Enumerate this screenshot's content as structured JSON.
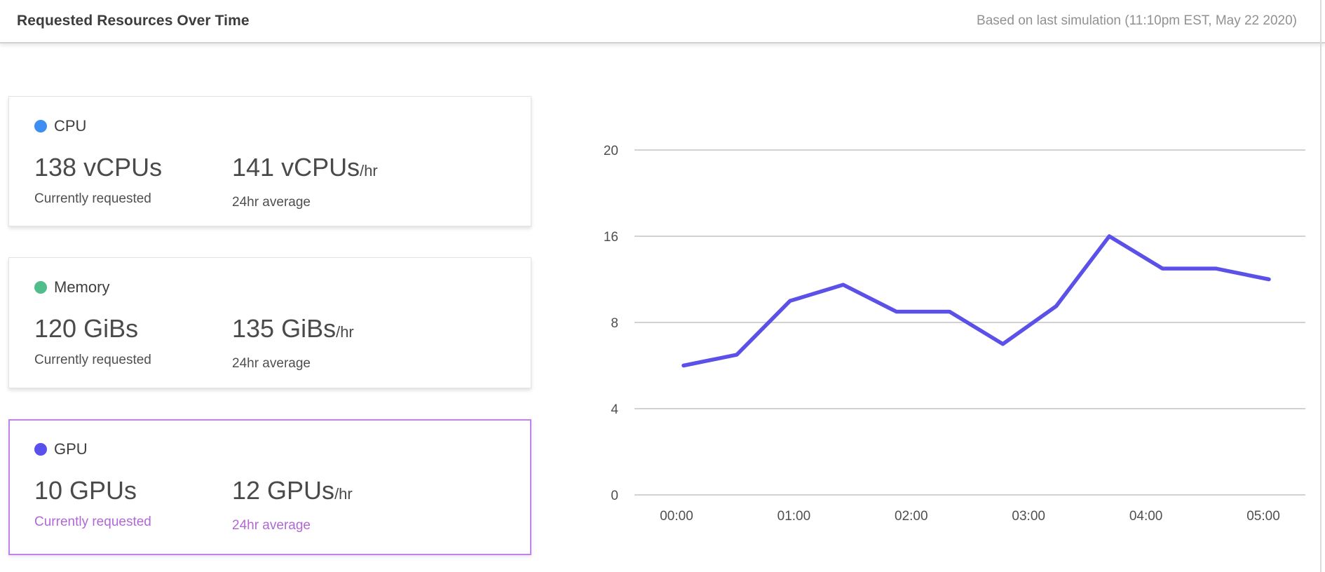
{
  "header": {
    "title": "Requested Resources Over Time",
    "subtitle": "Based on last simulation (11:10pm EST, May 22 2020)"
  },
  "cards": [
    {
      "id": "cpu",
      "label": "CPU",
      "dot_color": "#3d8df2",
      "current_value": "138 vCPUs",
      "current_caption": "Currently requested",
      "average_value": "141 vCPUs",
      "average_suffix": "/hr",
      "average_caption": "24hr average",
      "selected": false
    },
    {
      "id": "memory",
      "label": "Memory",
      "dot_color": "#4fbe8b",
      "current_value": "120 GiBs",
      "current_caption": "Currently requested",
      "average_value": "135 GiBs",
      "average_suffix": "/hr",
      "average_caption": "24hr average",
      "selected": false
    },
    {
      "id": "gpu",
      "label": "GPU",
      "dot_color": "#5a50ee",
      "current_value": "10 GPUs",
      "current_caption": "Currently requested",
      "average_value": "12 GPUs",
      "average_suffix": "/hr",
      "average_caption": "24hr average",
      "selected": true
    }
  ],
  "theme": {
    "selected_border_color": "#bd85ea",
    "selected_caption_color": "#b168d6",
    "grid_color": "#d2d2d2",
    "axis_text_color": "#4f4f4f"
  },
  "chart_data": {
    "type": "line",
    "series": [
      {
        "name": "GPU requested",
        "values": [
          6,
          6.5,
          10,
          11.5,
          9,
          9,
          7,
          9.5,
          16,
          13,
          13,
          12
        ]
      }
    ],
    "x_start": "00:00",
    "x_end": "05:00",
    "x_tick_labels": [
      "00:00",
      "01:00",
      "02:00",
      "03:00",
      "04:00",
      "05:00"
    ],
    "y_tick_labels": [
      20,
      16,
      8,
      4,
      0
    ],
    "y_axis_note": "gridlines evenly spaced top-to-bottom labeled 20, 16, 8, 4, 0",
    "line_color": "#5b51e9",
    "grid": true,
    "legend": "none",
    "points_note": "12 evenly spaced samples spanning 00:00 to 05:00"
  }
}
